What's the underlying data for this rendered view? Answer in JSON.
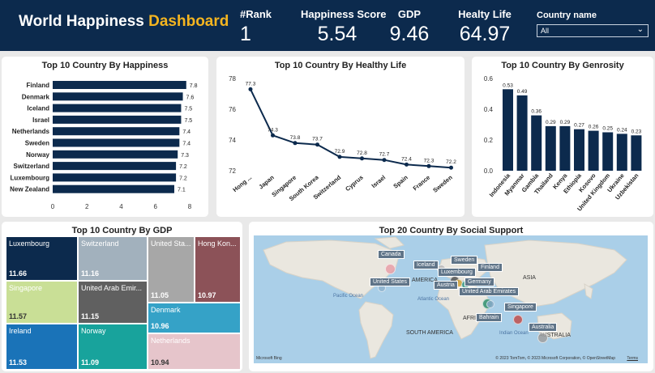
{
  "header": {
    "title_main": "World Happiness",
    "title_accent": "Dashboard",
    "kpis": [
      {
        "label": "#Rank",
        "value": "1"
      },
      {
        "label": "Happiness Score",
        "value": "5.54"
      },
      {
        "label": "GDP",
        "value": "9.46"
      },
      {
        "label": "Healty Life",
        "value": "64.97"
      }
    ],
    "slicer": {
      "label": "Country name",
      "value": "All"
    }
  },
  "colors": {
    "header_bg": "#0c2a4d",
    "accent": "#f5b520",
    "bar": "#0c2a4d"
  },
  "chart_data": [
    {
      "type": "bar",
      "orientation": "horizontal",
      "title": "Top 10 Country By Happiness",
      "categories": [
        "Finland",
        "Denmark",
        "Iceland",
        "Israel",
        "Netherlands",
        "Sweden",
        "Norway",
        "Switzerland",
        "Luxembourg",
        "New Zealand"
      ],
      "values": [
        7.8,
        7.6,
        7.5,
        7.5,
        7.4,
        7.4,
        7.3,
        7.2,
        7.2,
        7.1
      ],
      "data_labels": [
        "7.8",
        "7.6",
        "7.5",
        "7.5",
        "7.4",
        "7.4",
        "7.3",
        "7.2",
        "7.2",
        "7.1"
      ],
      "x_ticks": [
        "0",
        "2",
        "4",
        "6",
        "8"
      ],
      "xlim": [
        0,
        8
      ]
    },
    {
      "type": "line",
      "title": "Top 10 Country By Healthy Life",
      "categories": [
        "Hong ...",
        "Japan",
        "Singapore",
        "South Korea",
        "Switzerland",
        "Cyprus",
        "Israel",
        "Spain",
        "France",
        "Sweden"
      ],
      "values": [
        77.3,
        74.3,
        73.8,
        73.7,
        72.9,
        72.8,
        72.7,
        72.4,
        72.3,
        72.2
      ],
      "data_labels": [
        "77.3",
        "74.3",
        "73.8",
        "73.7",
        "72.9",
        "72.8",
        "72.7",
        "72.4",
        "72.3",
        "72.2"
      ],
      "y_ticks": [
        "72",
        "74",
        "76",
        "78"
      ],
      "ylim": [
        72,
        78
      ]
    },
    {
      "type": "bar",
      "title": "Top 10 Country By Genrosity",
      "categories": [
        "Indonesia",
        "Myanmar",
        "Gambia",
        "Thailand",
        "Kenya",
        "Ethiopia",
        "Kosovo",
        "United Kingdom",
        "Ukraine",
        "Uzbekistan"
      ],
      "values": [
        0.53,
        0.49,
        0.36,
        0.29,
        0.29,
        0.27,
        0.26,
        0.25,
        0.24,
        0.23
      ],
      "data_labels": [
        "0.53",
        "0.49",
        "0.36",
        "0.29",
        "0.29",
        "0.27",
        "0.26",
        "0.25",
        "0.24",
        "0.23"
      ],
      "y_ticks": [
        "0.0",
        "0.2",
        "0.4",
        "0.6"
      ],
      "ylim": [
        0,
        0.6
      ]
    },
    {
      "type": "treemap",
      "title": "Top 10 Country By GDP",
      "items": [
        {
          "name": "Luxembourg",
          "value": "11.66",
          "color": "#0c2a4d"
        },
        {
          "name": "Singapore",
          "value": "11.57",
          "color": "#c9df96"
        },
        {
          "name": "Ireland",
          "value": "11.53",
          "color": "#1a73b8"
        },
        {
          "name": "Switzerland",
          "value": "11.16",
          "color": "#a2b1bd"
        },
        {
          "name": "United Arab Emir...",
          "value": "11.15",
          "color": "#606060"
        },
        {
          "name": "Norway",
          "value": "11.09",
          "color": "#18a39c"
        },
        {
          "name": "United Sta...",
          "value": "11.05",
          "color": "#a7a7a7"
        },
        {
          "name": "Hong Kon...",
          "value": "10.97",
          "color": "#8c5258"
        },
        {
          "name": "Denmark",
          "value": "10.96",
          "color": "#35a2c7"
        },
        {
          "name": "Netherlands",
          "value": "10.94",
          "color": "#e6c5cb"
        }
      ]
    }
  ],
  "map": {
    "title": "Top 20 Country By Social Support",
    "labels": [
      "Canada",
      "Iceland",
      "Sweden",
      "Finland",
      "Luxembourg",
      "United States",
      "Austria",
      "Germany",
      "United Arab Emirates",
      "Singapore",
      "Bahrain",
      "Australia"
    ],
    "geo_labels": [
      "AMERICA",
      "ASIA",
      "AFRI",
      "SOUTH AMERICA",
      "AUSTRALIA"
    ],
    "oceans": [
      "Pacific Ocean",
      "Atlantic Ocean",
      "Indian Ocean"
    ],
    "attribution": "© 2023 TomTom, © 2023 Microsoft Corporation, © OpenStreetMap",
    "terms": "Terms",
    "brand": "Microsoft Bing"
  }
}
